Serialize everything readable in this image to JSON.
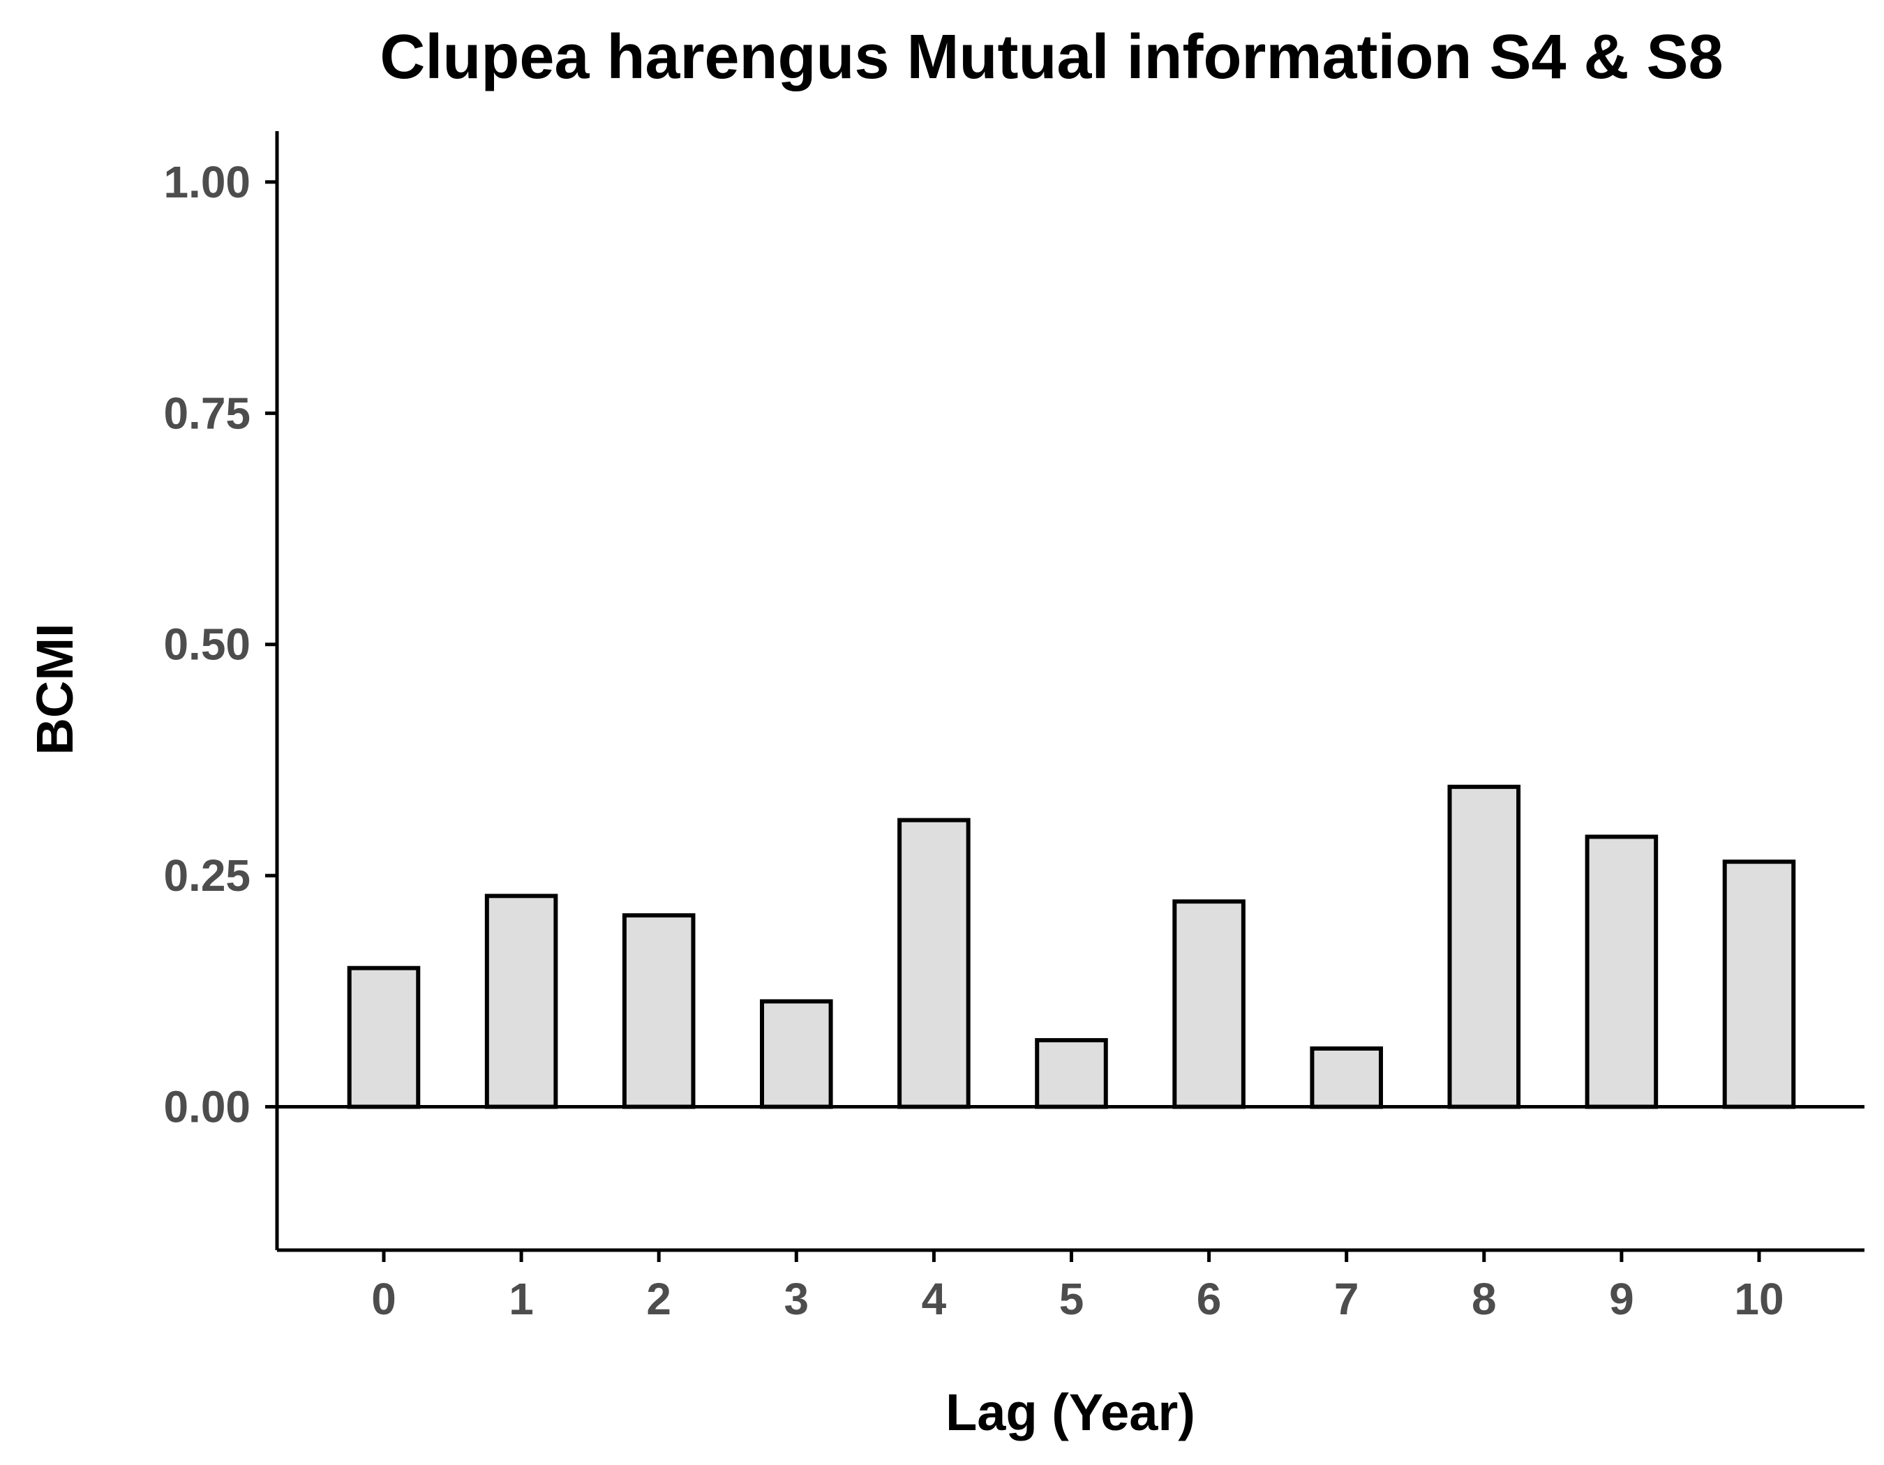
{
  "chart_data": {
    "type": "bar",
    "title": "Clupea harengus Mutual information S4 & S8",
    "xlabel": "Lag (Year)",
    "ylabel": "BCMI",
    "categories": [
      "0",
      "1",
      "2",
      "3",
      "4",
      "5",
      "6",
      "7",
      "8",
      "9",
      "10"
    ],
    "values": [
      0.15,
      0.228,
      0.207,
      0.114,
      0.31,
      0.072,
      0.222,
      0.063,
      0.346,
      0.292,
      0.265
    ],
    "ylim": [
      -0.155,
      1.055
    ],
    "yticks": [
      "0.00",
      "0.25",
      "0.50",
      "0.75",
      "1.00"
    ],
    "reference_line": 0,
    "grid": false,
    "legend": "none",
    "colors": {
      "bar_fill": "#dedede",
      "bar_stroke": "#000000",
      "axis": "#000000",
      "tick_label": "#4d4d4d"
    }
  }
}
